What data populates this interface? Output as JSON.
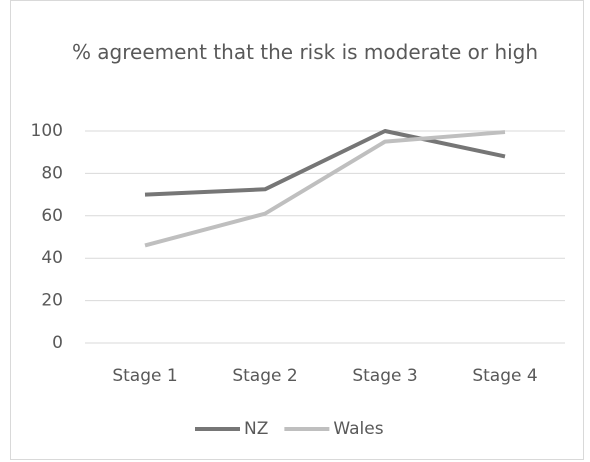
{
  "chart_data": {
    "type": "line",
    "title": "% agreement that the risk is moderate or high",
    "categories": [
      "Stage 1",
      "Stage 2",
      "Stage 3",
      "Stage 4"
    ],
    "series": [
      {
        "name": "NZ",
        "color": "#767676",
        "values": [
          70,
          72.5,
          100,
          88
        ]
      },
      {
        "name": "Wales",
        "color": "#bfbfbf",
        "values": [
          46,
          61,
          95,
          99.5
        ]
      }
    ],
    "ylim": [
      0,
      100
    ],
    "yticks": [
      0,
      20,
      40,
      60,
      80,
      100
    ],
    "grid": true,
    "legend": "bottom"
  }
}
